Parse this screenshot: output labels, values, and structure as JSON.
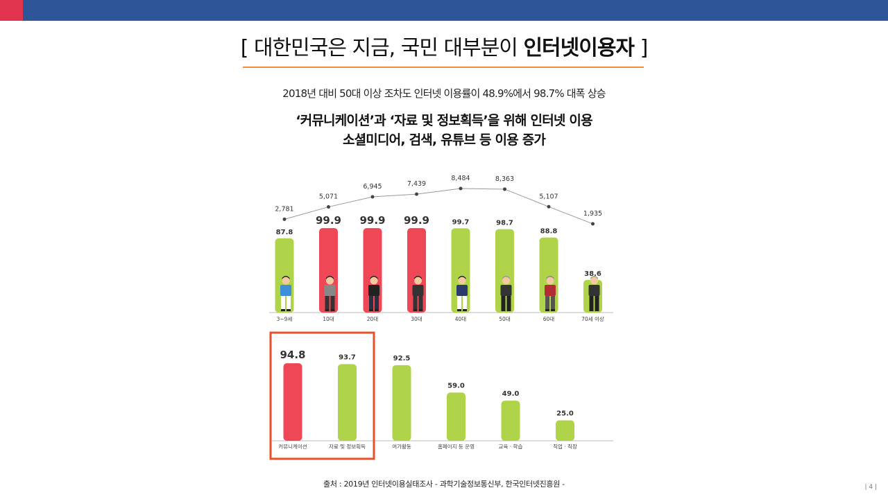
{
  "header": {
    "title_prefix": "[ 대한민국은 지금, 국민 대부분이 ",
    "title_bold": "인터넷이용자",
    "title_suffix": " ]",
    "subtitle1": "2018년 대비 50대 이상 조차도 인터넷 이용률이 48.9%에서 98.7% 대폭 상승",
    "subtitle2_line1": "‘커뮤니케이션’과 ‘자료 및 정보획득’을 위해 인터넷 이용",
    "subtitle2_line2": "소셜미디어, 검색, 유튜브 등 이용 증가"
  },
  "colors": {
    "top_bar": "#2e5597",
    "accent": "#e0344f",
    "red_bar": "#ee4756",
    "green_bar": "#afd44a",
    "rule": "#f08c3c",
    "highlight_box": "#e8522a"
  },
  "chart_data": [
    {
      "type": "bar",
      "categories": [
        "3~9세",
        "10대",
        "20대",
        "30대",
        "40대",
        "50대",
        "60대",
        "70세 이상"
      ],
      "values": [
        87.8,
        99.9,
        99.9,
        99.9,
        99.7,
        98.7,
        88.8,
        38.6
      ],
      "highlight": [
        false,
        true,
        true,
        true,
        false,
        false,
        false,
        false
      ],
      "ylim": [
        0,
        100
      ],
      "line": {
        "values": [
          "2,781",
          "5,071",
          "6,945",
          "7,439",
          "8,484",
          "8,363",
          "5,107",
          "1,935"
        ]
      },
      "figures": [
        "child-figure-icon",
        "teen-figure-icon",
        "young-adult-figure-icon",
        "adult-figure-icon",
        "businessman-figure-icon",
        "middle-aged-figure-icon",
        "senior-figure-icon",
        "elderly-figure-icon"
      ]
    },
    {
      "type": "bar",
      "categories": [
        "커뮤니케이션",
        "자료 및 정보획득",
        "여가활동",
        "홈페이지 등 운영",
        "교육 · 학습",
        "직업 · 직장"
      ],
      "values": [
        94.8,
        93.7,
        92.5,
        59.0,
        49.0,
        25.0
      ],
      "labels": [
        "94.8",
        "93.7",
        "92.5",
        "59.0",
        "49.0",
        "25.0"
      ],
      "highlight": [
        true,
        false,
        false,
        false,
        false,
        false
      ],
      "highlight_box_categories": [
        "커뮤니케이션",
        "자료 및 정보획득"
      ],
      "ylim": [
        0,
        100
      ]
    }
  ],
  "footer": {
    "source": "출처 : 2019년 인터넷이용실태조사 - 과학기술정보통신부, 한국인터넷진흥원 -",
    "page_number": "| 4 |"
  }
}
